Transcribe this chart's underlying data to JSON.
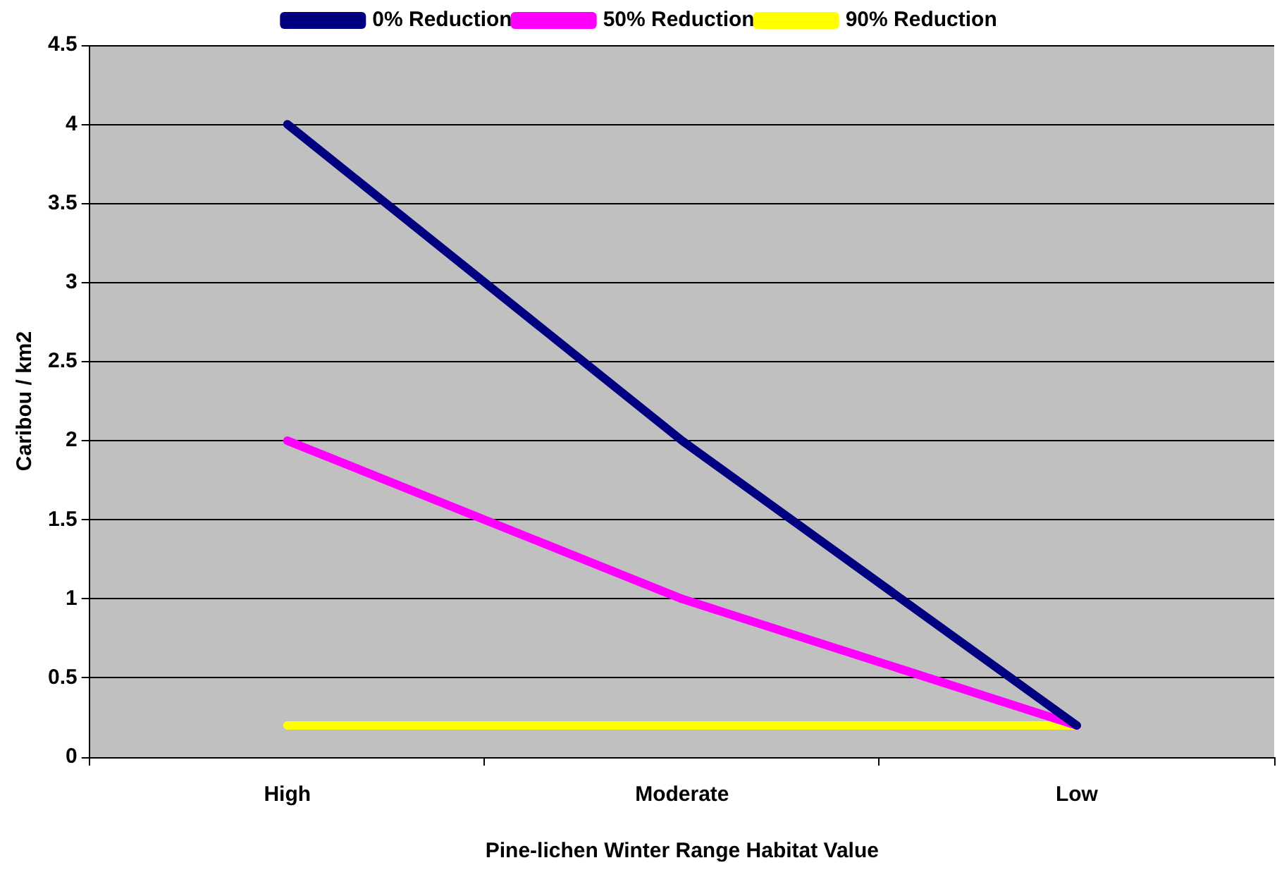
{
  "chart_data": {
    "type": "line",
    "xlabel": "Pine-lichen Winter Range Habitat Value",
    "ylabel": "Caribou / km2",
    "categories": [
      "High",
      "Moderate",
      "Low"
    ],
    "series": [
      {
        "name": "0% Reduction",
        "color": "#000080",
        "values": [
          4,
          2,
          0.2
        ]
      },
      {
        "name": "50% Reduction",
        "color": "#ff00ff",
        "values": [
          2,
          1,
          0.2
        ]
      },
      {
        "name": "90% Reduction",
        "color": "#ffff00",
        "values": [
          0.2,
          0.2,
          0.2
        ]
      }
    ],
    "ylim": [
      0,
      4.5
    ],
    "yticks": [
      0,
      0.5,
      1,
      1.5,
      2,
      2.5,
      3,
      3.5,
      4,
      4.5
    ],
    "grid": "y",
    "legend": "top",
    "marker": "none",
    "line_style": "solid"
  }
}
